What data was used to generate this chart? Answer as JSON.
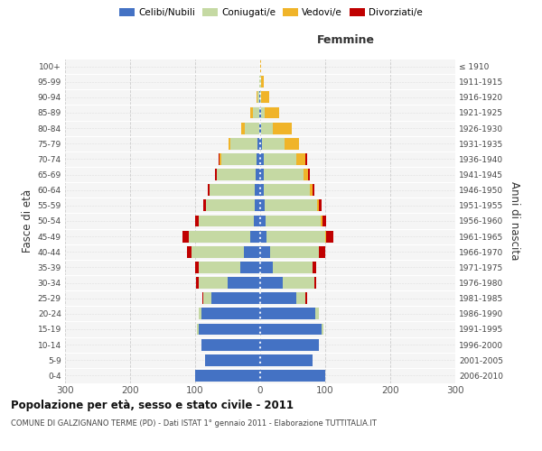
{
  "age_groups": [
    "0-4",
    "5-9",
    "10-14",
    "15-19",
    "20-24",
    "25-29",
    "30-34",
    "35-39",
    "40-44",
    "45-49",
    "50-54",
    "55-59",
    "60-64",
    "65-69",
    "70-74",
    "75-79",
    "80-84",
    "85-89",
    "90-94",
    "95-99",
    "100+"
  ],
  "birth_years": [
    "2006-2010",
    "2001-2005",
    "1996-2000",
    "1991-1995",
    "1986-1990",
    "1981-1985",
    "1976-1980",
    "1971-1975",
    "1966-1970",
    "1961-1965",
    "1956-1960",
    "1951-1955",
    "1946-1950",
    "1941-1945",
    "1936-1940",
    "1931-1935",
    "1926-1930",
    "1921-1925",
    "1916-1920",
    "1911-1915",
    "≤ 1910"
  ],
  "males": {
    "celibi": [
      100,
      85,
      90,
      95,
      90,
      75,
      50,
      30,
      25,
      15,
      10,
      8,
      8,
      7,
      5,
      4,
      2,
      1,
      1,
      0,
      0
    ],
    "coniugati": [
      0,
      0,
      0,
      2,
      5,
      12,
      45,
      65,
      80,
      95,
      85,
      75,
      70,
      60,
      55,
      42,
      22,
      10,
      3,
      1,
      0
    ],
    "vedovi": [
      0,
      0,
      0,
      0,
      0,
      0,
      0,
      0,
      0,
      0,
      0,
      0,
      0,
      0,
      2,
      3,
      5,
      4,
      2,
      1,
      0
    ],
    "divorziati": [
      0,
      0,
      0,
      0,
      0,
      2,
      3,
      5,
      8,
      10,
      5,
      4,
      3,
      2,
      2,
      0,
      0,
      0,
      0,
      0,
      0
    ]
  },
  "females": {
    "nubili": [
      100,
      80,
      90,
      95,
      85,
      55,
      35,
      20,
      15,
      10,
      8,
      7,
      6,
      6,
      5,
      3,
      2,
      1,
      0,
      0,
      0
    ],
    "coniugate": [
      0,
      0,
      0,
      2,
      5,
      15,
      48,
      60,
      75,
      90,
      85,
      80,
      70,
      60,
      50,
      35,
      18,
      6,
      2,
      1,
      0
    ],
    "vedove": [
      0,
      0,
      0,
      0,
      0,
      0,
      0,
      0,
      0,
      2,
      3,
      3,
      5,
      8,
      15,
      22,
      28,
      22,
      12,
      5,
      2
    ],
    "divorziate": [
      0,
      0,
      0,
      0,
      0,
      2,
      3,
      6,
      10,
      10,
      5,
      4,
      3,
      2,
      2,
      0,
      0,
      0,
      0,
      0,
      0
    ]
  },
  "color_celibi": "#4472C4",
  "color_coniugati": "#C5D9A3",
  "color_vedovi": "#F0B429",
  "color_divorziati": "#C00000",
  "xlim": 300,
  "xtick_step": 100,
  "title": "Popolazione per età, sesso e stato civile - 2011",
  "subtitle": "COMUNE DI GALZIGNANO TERME (PD) - Dati ISTAT 1° gennaio 2011 - Elaborazione TUTTITALIA.IT",
  "ylabel": "Fasce di età",
  "ylabel_right": "Anni di nascita",
  "xlabel_femmine": "Femmine",
  "bg_color": "#f5f5f5",
  "grid_color": "#cccccc",
  "bar_height": 0.75
}
